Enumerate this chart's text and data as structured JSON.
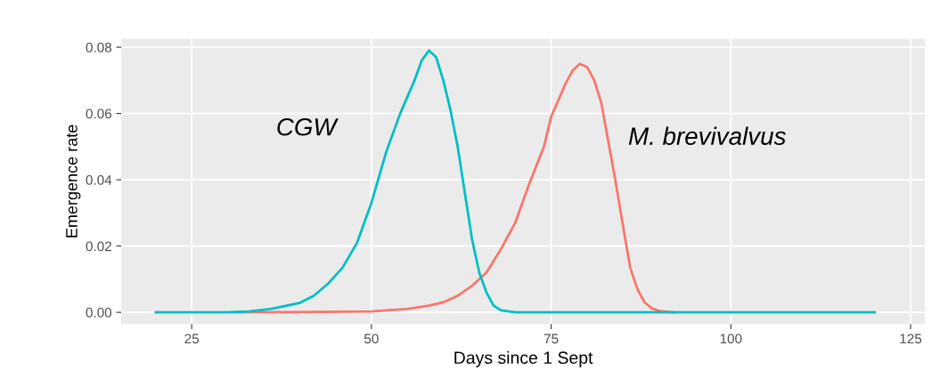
{
  "chart_data": {
    "type": "line",
    "xlabel": "Days since 1 Sept",
    "ylabel": "Emergence rate",
    "xlim": [
      15.2,
      127
    ],
    "xticks": [
      25,
      50,
      75,
      100,
      125
    ],
    "ylim": [
      -0.0036,
      0.0826
    ],
    "yticks": [
      {
        "value": 0,
        "label": "0.00"
      },
      {
        "value": 0.02,
        "label": "0.02"
      },
      {
        "value": 0.04,
        "label": "0.04"
      },
      {
        "value": 0.06,
        "label": "0.06"
      },
      {
        "value": 0.08,
        "label": "0.08"
      }
    ],
    "grid": true,
    "legend": false,
    "marker": "none",
    "line_style": "solid",
    "series": [
      {
        "name": "M. brevivalvus",
        "color": "#f8766d",
        "x": [
          31,
          40,
          50,
          55,
          58,
          60,
          62,
          64,
          66,
          68,
          70,
          72,
          74,
          75,
          76,
          77,
          78,
          79,
          80,
          81,
          82,
          83,
          84,
          85,
          86,
          87,
          88,
          89,
          90,
          92
        ],
        "values": [
          0,
          0.0001,
          0.0003,
          0.001,
          0.002,
          0.003,
          0.005,
          0.008,
          0.012,
          0.019,
          0.027,
          0.039,
          0.05,
          0.059,
          0.064,
          0.069,
          0.073,
          0.075,
          0.074,
          0.07,
          0.063,
          0.051,
          0.039,
          0.026,
          0.0135,
          0.007,
          0.003,
          0.0012,
          0.0004,
          0
        ]
      },
      {
        "name": "CGW",
        "color": "#00bfc4",
        "x": [
          20,
          30,
          33,
          36,
          40,
          42,
          44,
          46,
          48,
          50,
          52,
          54,
          56,
          57,
          58,
          59,
          60,
          61,
          62,
          63,
          64,
          65,
          66,
          67,
          68,
          70,
          120
        ],
        "values": [
          0,
          0,
          0.0003,
          0.001,
          0.0028,
          0.005,
          0.0087,
          0.0135,
          0.021,
          0.033,
          0.048,
          0.06,
          0.07,
          0.076,
          0.079,
          0.077,
          0.07,
          0.061,
          0.05,
          0.036,
          0.022,
          0.012,
          0.006,
          0.002,
          0.0006,
          0,
          0
        ]
      }
    ]
  }
}
